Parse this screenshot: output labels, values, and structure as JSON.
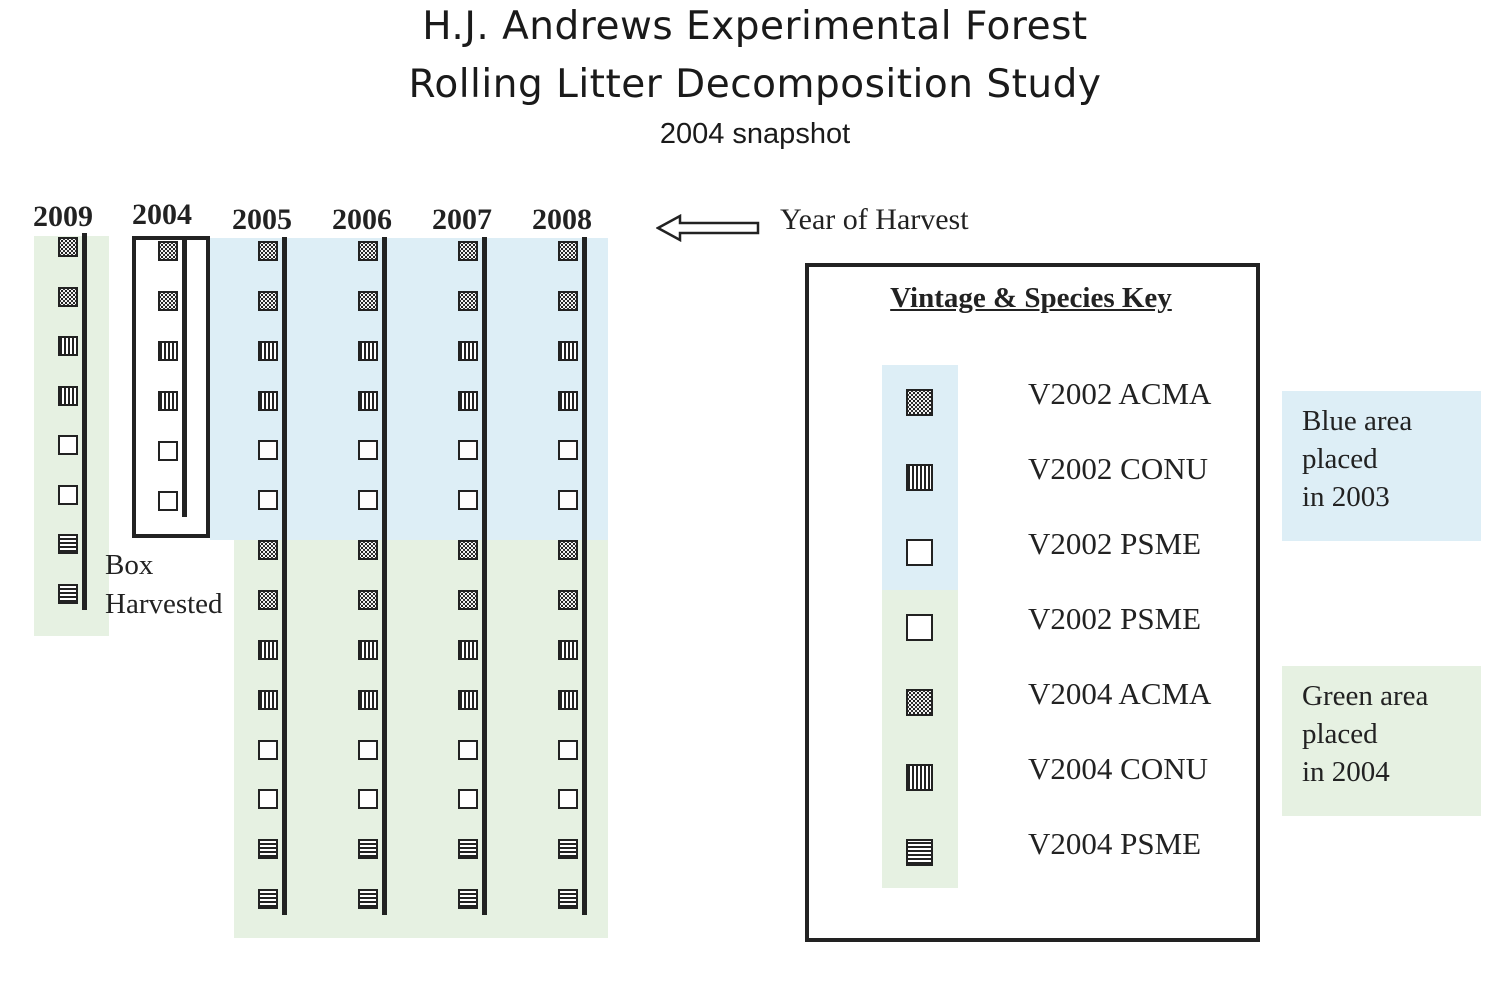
{
  "title": {
    "line1": "H.J. Andrews Experimental Forest",
    "line2": "Rolling Litter Decomposition Study",
    "line3": "2004 snapshot"
  },
  "colors": {
    "blue_area": "#ddeef6",
    "green_area": "#e6f1e2",
    "ink": "#222222"
  },
  "columns": [
    {
      "year": "2009",
      "bags": [
        "acma",
        "acma",
        "conu",
        "conu",
        "psme",
        "psme",
        "psme-h",
        "psme-h"
      ]
    },
    {
      "year": "2004",
      "bags": [
        "acma",
        "acma",
        "conu",
        "conu",
        "psme",
        "psme"
      ]
    },
    {
      "year": "2005",
      "bags": [
        "acma",
        "acma",
        "conu",
        "conu",
        "psme",
        "psme",
        "acma",
        "acma",
        "conu",
        "conu",
        "psme",
        "psme",
        "psme-h",
        "psme-h"
      ]
    },
    {
      "year": "2006",
      "bags": [
        "acma",
        "acma",
        "conu",
        "conu",
        "psme",
        "psme",
        "acma",
        "acma",
        "conu",
        "conu",
        "psme",
        "psme",
        "psme-h",
        "psme-h"
      ]
    },
    {
      "year": "2007",
      "bags": [
        "acma",
        "acma",
        "conu",
        "conu",
        "psme",
        "psme",
        "acma",
        "acma",
        "conu",
        "conu",
        "psme",
        "psme",
        "psme-h",
        "psme-h"
      ]
    },
    {
      "year": "2008",
      "bags": [
        "acma",
        "acma",
        "conu",
        "conu",
        "psme",
        "psme",
        "acma",
        "acma",
        "conu",
        "conu",
        "psme",
        "psme",
        "psme-h",
        "psme-h"
      ]
    }
  ],
  "harvest_arrow_label": "Year of Harvest",
  "box_harvested": {
    "line1": "Box",
    "line2": "Harvested"
  },
  "legend": {
    "title": "Vintage & Species Key",
    "items": [
      {
        "label": "V2002 ACMA",
        "pattern": "acma"
      },
      {
        "label": "V2002 CONU",
        "pattern": "conu"
      },
      {
        "label": "V2002 PSME",
        "pattern": "psme"
      },
      {
        "label": "V2002 PSME",
        "pattern": "psme"
      },
      {
        "label": "V2004 ACMA",
        "pattern": "acma"
      },
      {
        "label": "V2004 CONU",
        "pattern": "conu"
      },
      {
        "label": "V2004 PSME",
        "pattern": "psme-h"
      }
    ]
  },
  "notes": {
    "blue": {
      "line1": "Blue area",
      "line2": "placed",
      "line3": "in 2003"
    },
    "green": {
      "line1": "Green area",
      "line2": "placed",
      "line3": "in 2004"
    }
  }
}
